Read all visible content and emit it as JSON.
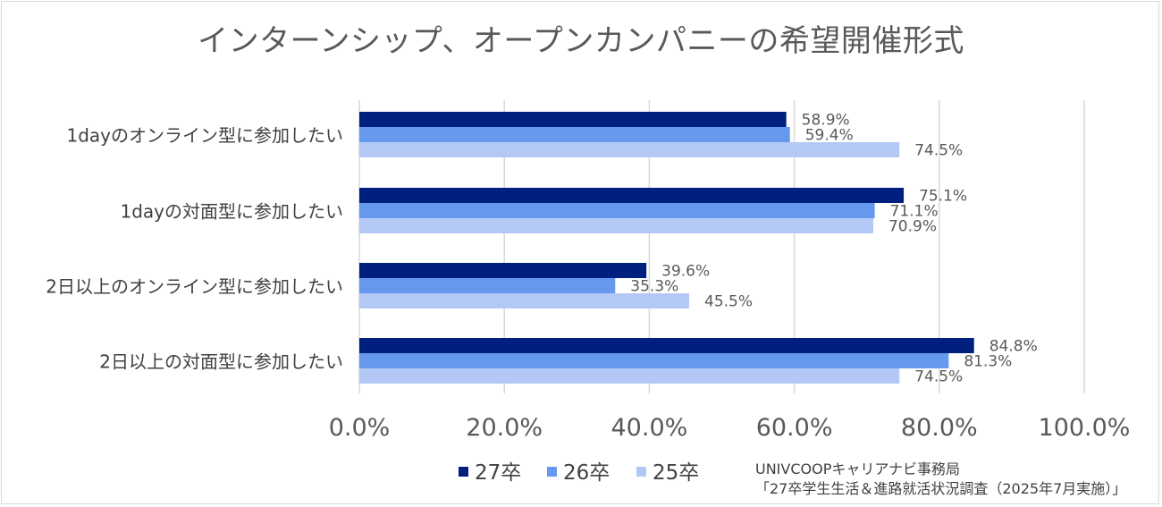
{
  "chart_data": {
    "type": "bar",
    "orientation": "horizontal",
    "title": "インターンシップ、オープンカンパニーの希望開催形式",
    "categories": [
      "1dayのオンライン型に参加したい",
      "1dayの対面型に参加したい",
      "2日以上のオンライン型に参加したい",
      "2日以上の対面型に参加したい"
    ],
    "series": [
      {
        "name": "27卒",
        "color": "#002080",
        "values": [
          58.9,
          75.1,
          39.6,
          84.8
        ],
        "labels": [
          "58.9%",
          "75.1%",
          "39.6%",
          "84.8%"
        ]
      },
      {
        "name": "26卒",
        "color": "#6699ee",
        "values": [
          59.4,
          71.1,
          35.3,
          81.3
        ],
        "labels": [
          "59.4%",
          "71.1%",
          "35.3%",
          "81.3%"
        ]
      },
      {
        "name": "25卒",
        "color": "#b4c8f5",
        "values": [
          74.5,
          70.9,
          45.5,
          74.5
        ],
        "labels": [
          "74.5%",
          "70.9%",
          "45.5%",
          "74.5%"
        ]
      }
    ],
    "xlim": [
      0,
      100
    ],
    "x_ticks": [
      0,
      20,
      40,
      60,
      80,
      100
    ],
    "x_tick_labels": [
      "0.0%",
      "20.0%",
      "40.0%",
      "60.0%",
      "80.0%",
      "100.0%"
    ],
    "grid": true,
    "legend": "bottom"
  },
  "source": {
    "line1": "UNIVCOOPキャリアナビ事務局",
    "line2": "「27卒学生生活＆進路就活状況調査（2025年7月実施）」"
  }
}
